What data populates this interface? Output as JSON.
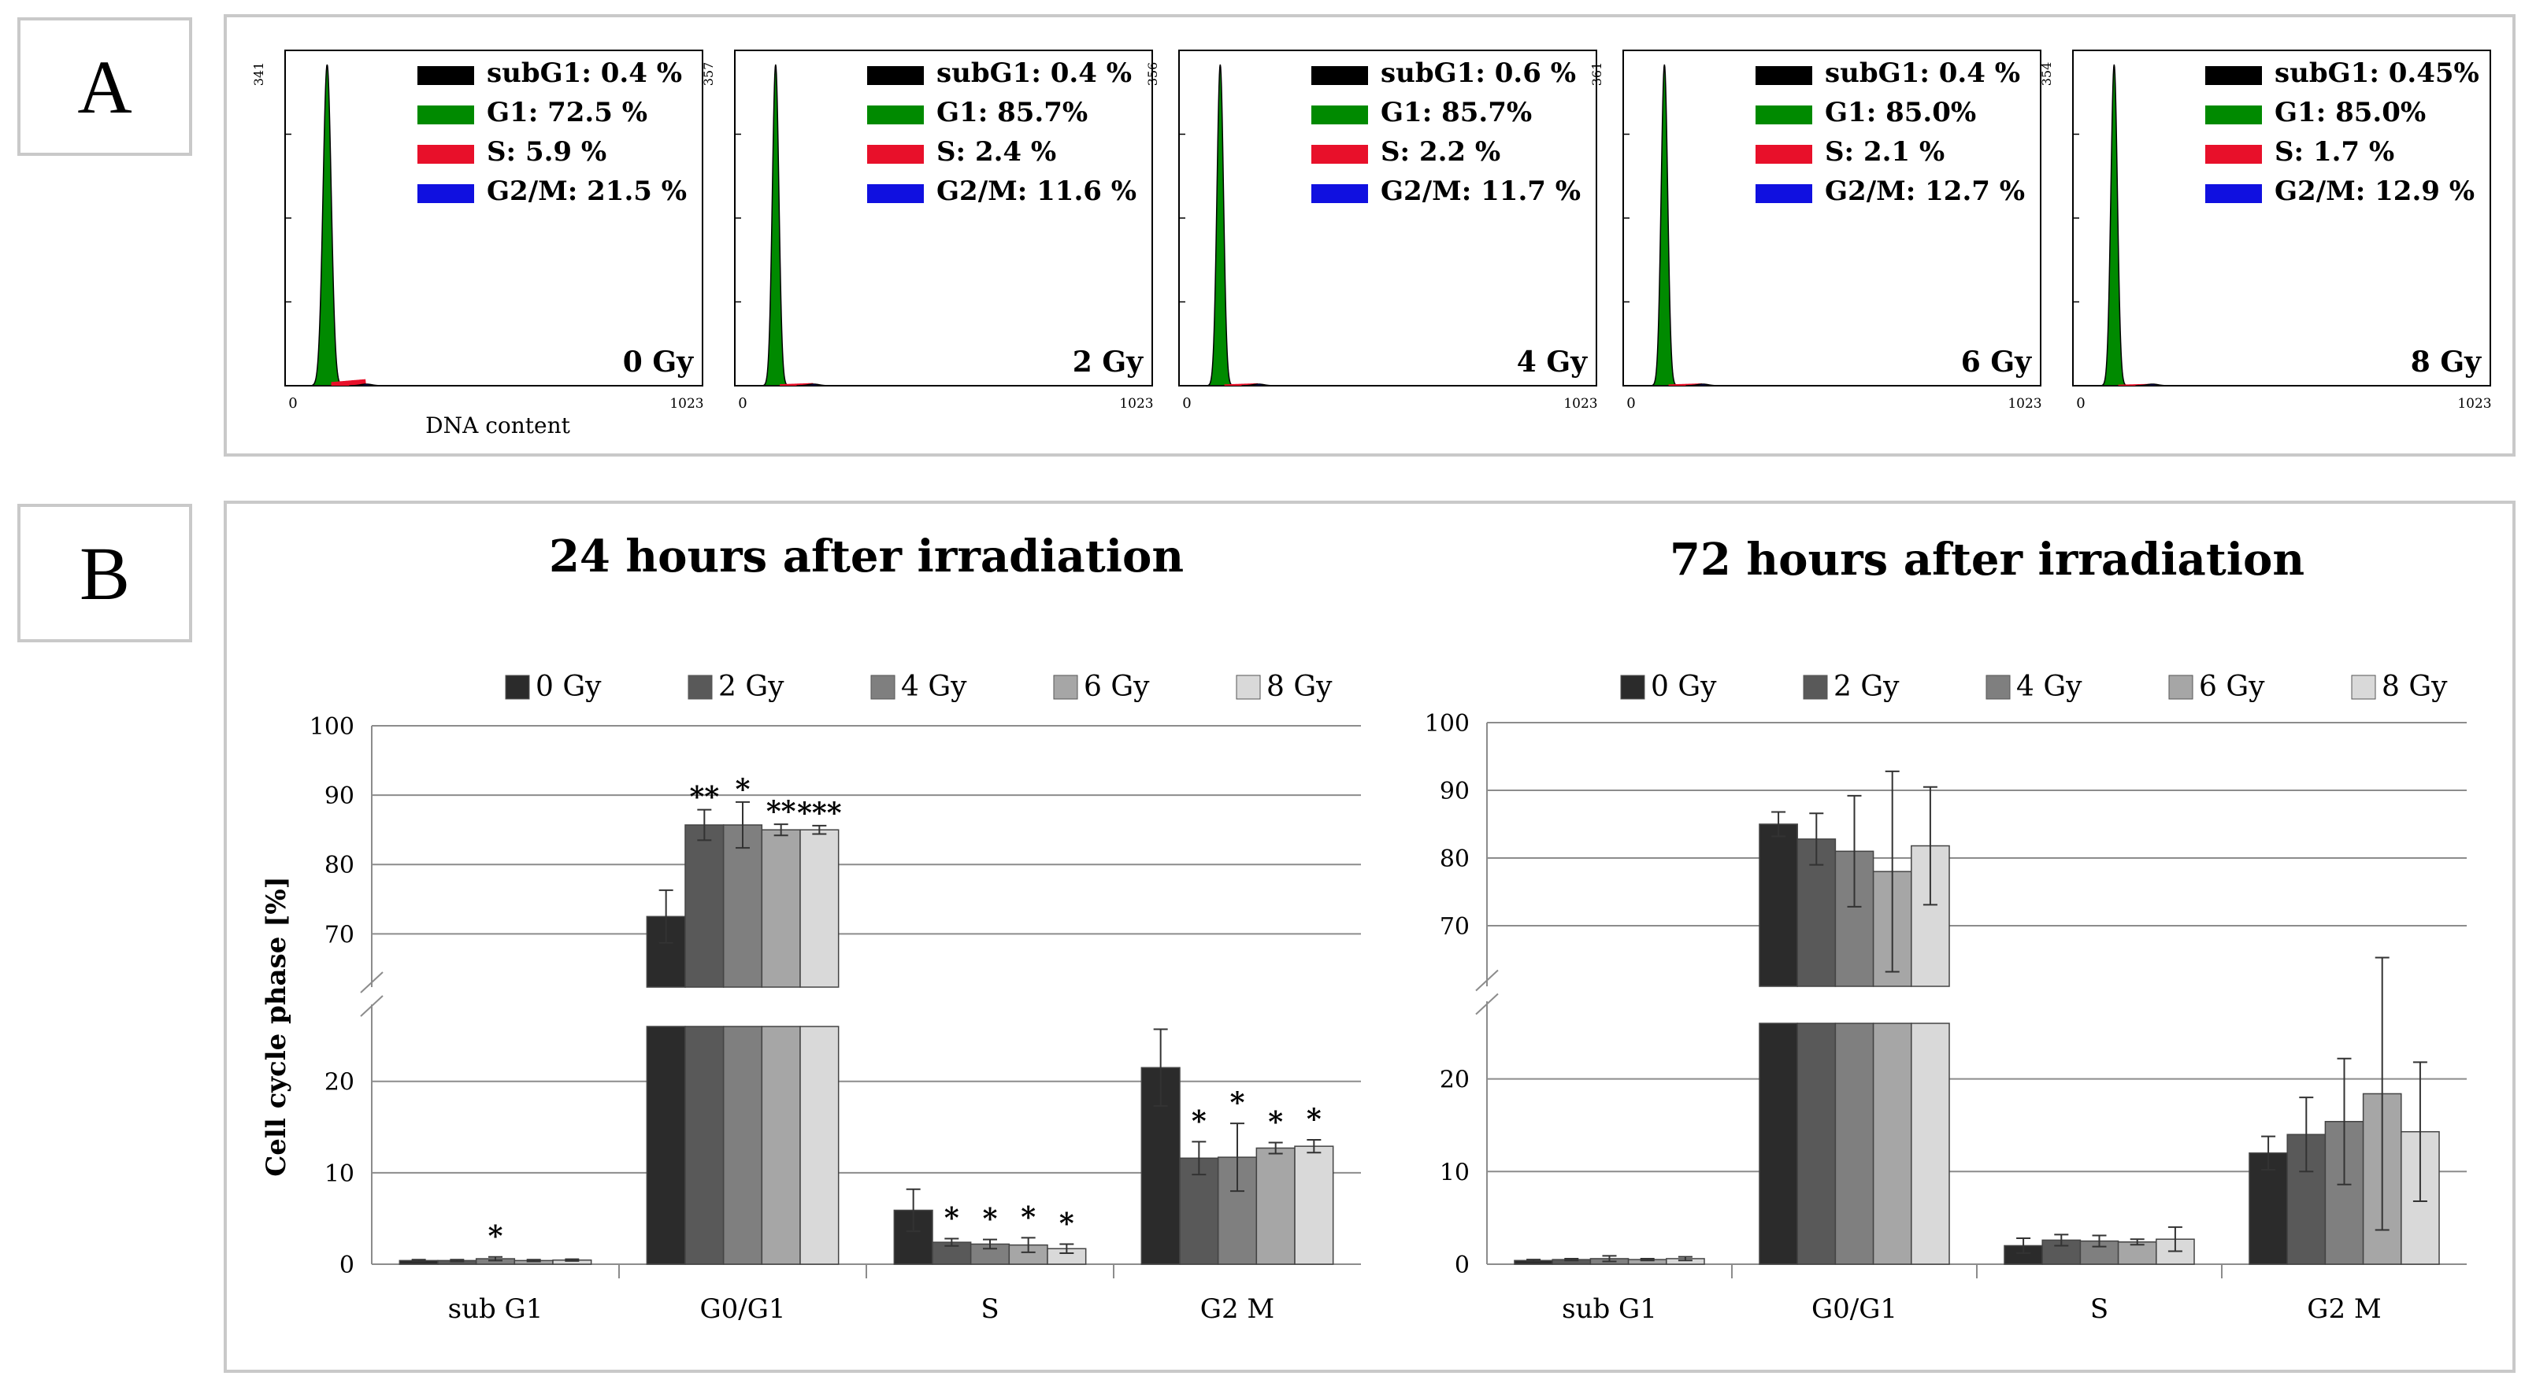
{
  "panel_a": {
    "label": "A",
    "x_axis_label": "DNA content",
    "x_min_label": "0",
    "x_max_label": "1023",
    "colors": {
      "subG1": "#000000",
      "G1": "#008a00",
      "S": "#e8102a",
      "G2M": "#1010e0"
    }
  },
  "panel_b": {
    "label": "B"
  },
  "chart_data": [
    {
      "type": "histogram",
      "title": "0 Gy",
      "y_max_label": "341",
      "x_range": [
        0,
        1023
      ],
      "legend": [
        "subG1: 0.4 %",
        "G1: 72.5 %",
        "S: 5.9 %",
        "G2/M: 21.5 %"
      ]
    },
    {
      "type": "histogram",
      "title": "2 Gy",
      "y_max_label": "357",
      "x_range": [
        0,
        1023
      ],
      "legend": [
        "subG1: 0.4 %",
        "G1: 85.7%",
        "S: 2.4 %",
        "G2/M: 11.6 %"
      ]
    },
    {
      "type": "histogram",
      "title": "4 Gy",
      "y_max_label": "356",
      "x_range": [
        0,
        1023
      ],
      "legend": [
        "subG1: 0.6 %",
        "G1: 85.7%",
        "S: 2.2 %",
        "G2/M: 11.7 %"
      ]
    },
    {
      "type": "histogram",
      "title": "6 Gy",
      "y_max_label": "361",
      "x_range": [
        0,
        1023
      ],
      "legend": [
        "subG1: 0.4 %",
        "G1: 85.0%",
        "S: 2.1 %",
        "G2/M: 12.7 %"
      ]
    },
    {
      "type": "histogram",
      "title": "8 Gy",
      "y_max_label": "354",
      "x_range": [
        0,
        1023
      ],
      "legend": [
        "subG1: 0.45%",
        "G1: 85.0%",
        "S: 1.7 %",
        "G2/M: 12.9 %"
      ]
    },
    {
      "type": "bar",
      "title": "24 hours after irradiation",
      "ylabel": "Cell cycle phase [%]",
      "categories": [
        "sub G1",
        "G0/G1",
        "S",
        "G2 M"
      ],
      "series_names": [
        "0 Gy",
        "2 Gy",
        "4 Gy",
        "6 Gy",
        "8 Gy"
      ],
      "series_colors": [
        "#2b2b2b",
        "#595959",
        "#7f7f7f",
        "#a6a6a6",
        "#d9d9d9"
      ],
      "lower_ticks": [
        0,
        10,
        20
      ],
      "upper_ticks": [
        70,
        80,
        90,
        100
      ],
      "values": [
        [
          0.4,
          0.4,
          0.6,
          0.4,
          0.45
        ],
        [
          72.5,
          85.7,
          85.7,
          85.0,
          85.0
        ],
        [
          5.9,
          2.4,
          2.2,
          2.1,
          1.7
        ],
        [
          21.5,
          11.6,
          11.7,
          12.7,
          12.9
        ]
      ],
      "errors": [
        [
          0.1,
          0.1,
          0.2,
          0.1,
          0.1
        ],
        [
          3.8,
          2.2,
          3.3,
          0.8,
          0.6
        ],
        [
          2.3,
          0.4,
          0.5,
          0.8,
          0.5
        ],
        [
          4.2,
          1.8,
          3.7,
          0.6,
          0.7
        ]
      ],
      "significance": [
        [
          "",
          "",
          "*",
          "",
          ""
        ],
        [
          "",
          "**",
          "*",
          "**",
          "***"
        ],
        [
          "",
          "*",
          "*",
          "*",
          "*"
        ],
        [
          "",
          "*",
          "*",
          "*",
          "*"
        ]
      ]
    },
    {
      "type": "bar",
      "title": "72 hours after irradiation",
      "ylabel": "",
      "categories": [
        "sub G1",
        "G0/G1",
        "S",
        "G2 M"
      ],
      "series_names": [
        "0 Gy",
        "2 Gy",
        "4 Gy",
        "6 Gy",
        "8 Gy"
      ],
      "series_colors": [
        "#2b2b2b",
        "#595959",
        "#7f7f7f",
        "#a6a6a6",
        "#d9d9d9"
      ],
      "lower_ticks": [
        0,
        10,
        20
      ],
      "upper_ticks": [
        70,
        80,
        90,
        100
      ],
      "values": [
        [
          0.4,
          0.5,
          0.6,
          0.5,
          0.6
        ],
        [
          85.0,
          82.8,
          81.0,
          78.0,
          81.8
        ],
        [
          2.0,
          2.6,
          2.5,
          2.4,
          2.7
        ],
        [
          12.0,
          14.0,
          15.4,
          18.4,
          14.3
        ]
      ],
      "errors": [
        [
          0.1,
          0.1,
          0.3,
          0.1,
          0.2
        ],
        [
          1.8,
          3.8,
          8.2,
          14.8,
          8.7
        ],
        [
          0.8,
          0.6,
          0.6,
          0.3,
          1.3
        ],
        [
          1.8,
          4.0,
          6.8,
          14.7,
          7.5
        ]
      ],
      "significance": [
        [
          "",
          "",
          "",
          "",
          ""
        ],
        [
          "",
          "",
          "",
          "",
          ""
        ],
        [
          "",
          "",
          "",
          "",
          ""
        ],
        [
          "",
          "",
          "",
          "",
          ""
        ]
      ]
    }
  ]
}
